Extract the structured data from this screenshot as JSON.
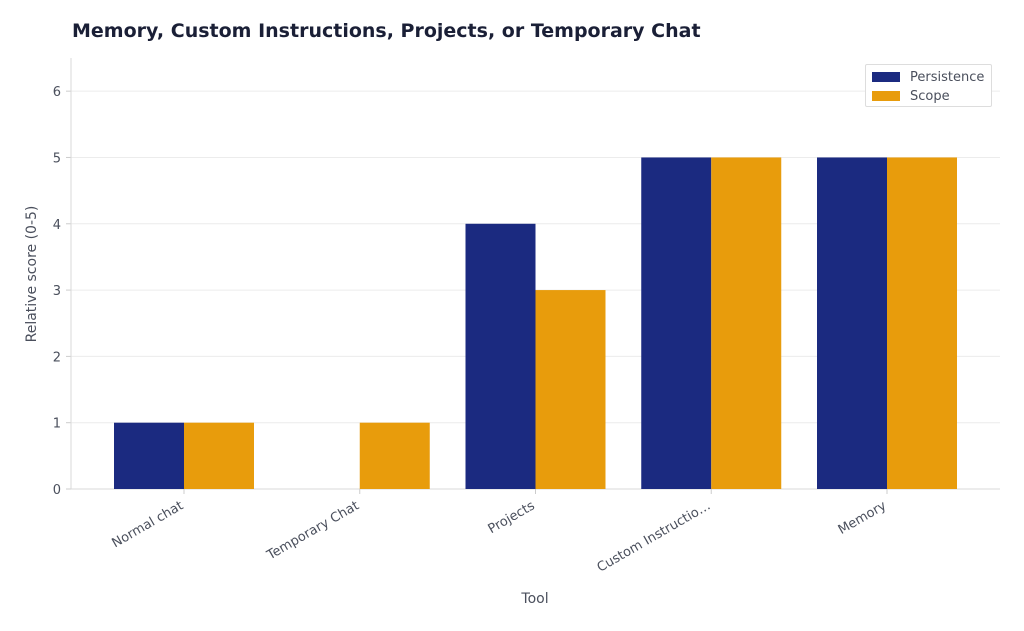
{
  "chart_data": {
    "type": "bar",
    "title": "Memory, Custom Instructions, Projects, or Temporary Chat",
    "xlabel": "Tool",
    "ylabel": "Relative score (0-5)",
    "categories": [
      "Normal chat",
      "Temporary Chat",
      "Projects",
      "Custom Instructio…",
      "Memory"
    ],
    "series": [
      {
        "name": "Persistence",
        "color": "#1b2a80",
        "values": [
          1,
          0,
          4,
          5,
          5
        ]
      },
      {
        "name": "Scope",
        "color": "#e89c0c",
        "values": [
          1,
          1,
          3,
          5,
          5
        ]
      }
    ],
    "ylim": [
      0,
      6.5
    ],
    "yticks": [
      0,
      1,
      2,
      3,
      4,
      5,
      6
    ],
    "grid": "horizontal",
    "legend": "top-right"
  }
}
